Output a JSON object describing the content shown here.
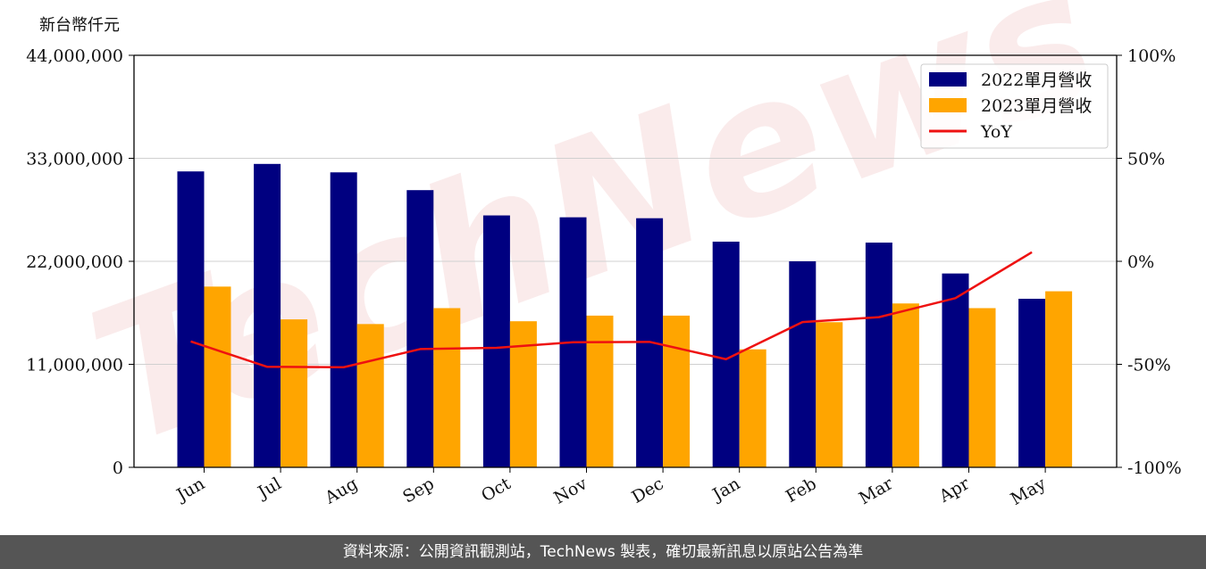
{
  "chart_data": {
    "type": "bar",
    "ylabel": "新台幣仟元",
    "categories": [
      "Jun",
      "Jul",
      "Aug",
      "Sep",
      "Oct",
      "Nov",
      "Dec",
      "Jan",
      "Feb",
      "Mar",
      "Apr",
      "May"
    ],
    "series": [
      {
        "name": "2022單月營收",
        "color": "#000080",
        "values": [
          31600000,
          32400000,
          31500000,
          29600000,
          26900000,
          26700000,
          26600000,
          24100000,
          22000000,
          24000000,
          20700000,
          18000000
        ]
      },
      {
        "name": "2023單月營收",
        "color": "#FFA500",
        "values": [
          19300000,
          15800000,
          15300000,
          17000000,
          15600000,
          16200000,
          16200000,
          12600000,
          15500000,
          17500000,
          17000000,
          18800000
        ]
      }
    ],
    "line_series": {
      "name": "YoY",
      "color": "#EE1111",
      "axis": "right",
      "values": [
        -38.9,
        -51.2,
        -51.4,
        -42.6,
        -42.0,
        -39.3,
        -39.1,
        -47.5,
        -29.5,
        -27.1,
        -17.9,
        4.4
      ]
    },
    "ylim": [
      0,
      44000000
    ],
    "y_ticks": [
      "0",
      "11,000,000",
      "22,000,000",
      "33,000,000",
      "44,000,000"
    ],
    "y_tick_values": [
      0,
      11000000,
      22000000,
      33000000,
      44000000
    ],
    "y2lim": [
      -100,
      100
    ],
    "y2_ticks": [
      "-100%",
      "-50%",
      "0%",
      "50%",
      "100%"
    ],
    "y2_tick_values": [
      -100,
      -50,
      0,
      50,
      100
    ],
    "grid": "horizontal",
    "legend_position": "top-right",
    "watermark": "TechNews"
  },
  "footer": {
    "text": "資料來源：公開資訊觀測站，TechNews 製表，確切最新訊息以原站公告為準"
  }
}
